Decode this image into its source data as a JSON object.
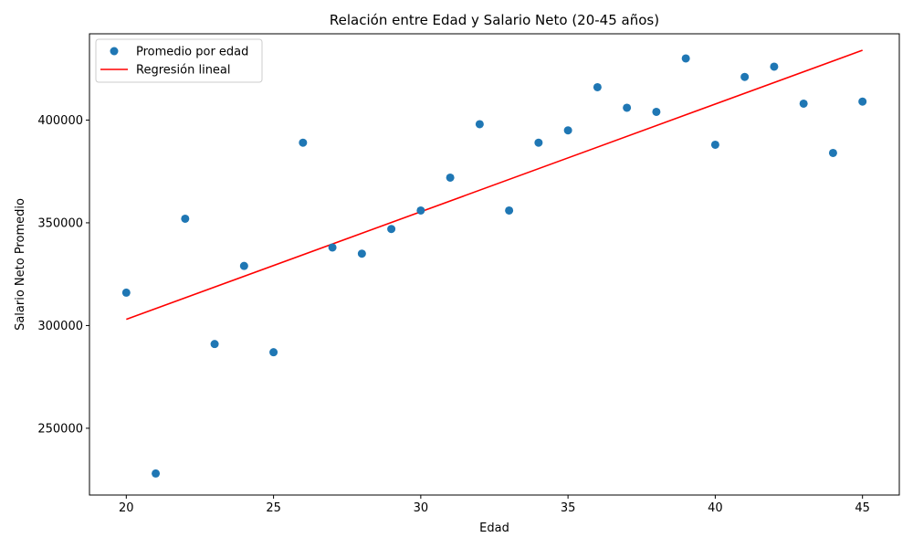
{
  "chart_data": {
    "type": "scatter",
    "title": "Relación entre Edad y Salario Neto (20-45 años)",
    "xlabel": "Edad",
    "ylabel": "Salario Neto Promedio",
    "xlim": [
      18.75,
      46.25
    ],
    "ylim": [
      217500,
      442000
    ],
    "xticks": [
      20,
      25,
      30,
      35,
      40,
      45
    ],
    "yticks": [
      250000,
      300000,
      350000,
      400000
    ],
    "grid": false,
    "legend_position": "top-left",
    "series": [
      {
        "name": "Promedio por edad",
        "kind": "scatter",
        "color": "#1f77b4",
        "x": [
          20,
          21,
          22,
          23,
          24,
          25,
          26,
          27,
          28,
          29,
          30,
          31,
          32,
          33,
          34,
          35,
          36,
          37,
          38,
          39,
          40,
          41,
          42,
          43,
          44,
          45
        ],
        "y": [
          316000,
          228000,
          352000,
          291000,
          329000,
          287000,
          389000,
          338000,
          335000,
          347000,
          356000,
          372000,
          398000,
          356000,
          389000,
          395000,
          416000,
          406000,
          404000,
          430000,
          388000,
          421000,
          426000,
          408000,
          384000,
          409000
        ]
      },
      {
        "name": "Regresión lineal",
        "kind": "line",
        "color": "#ff0000",
        "x": [
          20,
          45
        ],
        "y": [
          303000,
          434000
        ]
      }
    ]
  }
}
